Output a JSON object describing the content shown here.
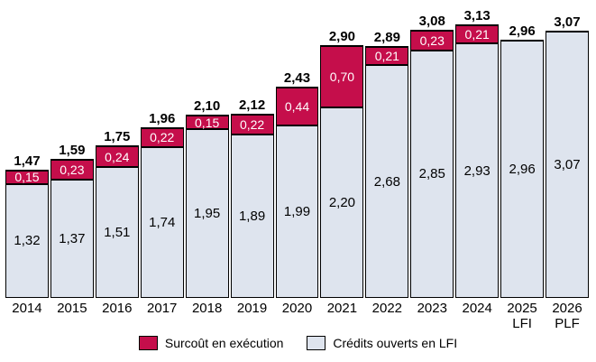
{
  "chart_data": {
    "type": "bar",
    "stacked": true,
    "orientation": "vertical",
    "number_format": "fr-comma-2dp",
    "grid": false,
    "legend_position": "bottom",
    "ylim": [
      0,
      3.2
    ],
    "categories": [
      {
        "label": "2014",
        "sub": ""
      },
      {
        "label": "2015",
        "sub": ""
      },
      {
        "label": "2016",
        "sub": ""
      },
      {
        "label": "2017",
        "sub": ""
      },
      {
        "label": "2018",
        "sub": ""
      },
      {
        "label": "2019",
        "sub": ""
      },
      {
        "label": "2020",
        "sub": ""
      },
      {
        "label": "2021",
        "sub": ""
      },
      {
        "label": "2022",
        "sub": ""
      },
      {
        "label": "2023",
        "sub": ""
      },
      {
        "label": "2024",
        "sub": ""
      },
      {
        "label": "2025",
        "sub": "LFI"
      },
      {
        "label": "2026",
        "sub": "PLF"
      }
    ],
    "series": [
      {
        "name": "Surcoût en exécution",
        "color": "#C50E4B",
        "text_color": "#FFFFFF",
        "values": [
          0.15,
          0.23,
          0.24,
          0.22,
          0.15,
          0.22,
          0.44,
          0.7,
          0.21,
          0.23,
          0.21,
          0,
          0
        ]
      },
      {
        "name": "Crédits ouverts en LFI",
        "color": "#DEE4EE",
        "text_color": "#000000",
        "values": [
          1.32,
          1.37,
          1.51,
          1.74,
          1.95,
          1.89,
          1.99,
          2.2,
          2.68,
          2.85,
          2.93,
          2.96,
          3.07
        ]
      }
    ],
    "totals": [
      1.47,
      1.59,
      1.75,
      1.96,
      2.1,
      2.12,
      2.43,
      2.9,
      2.89,
      3.08,
      3.13,
      2.96,
      3.07
    ]
  }
}
